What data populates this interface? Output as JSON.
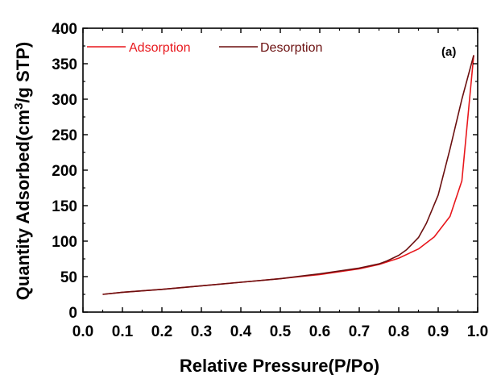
{
  "chart_data": {
    "type": "line",
    "xlabel": "Relative Pressure(P/Po)",
    "ylabel_parts": [
      "Quantity Adsorbed(cm",
      "3",
      "/g STP)"
    ],
    "annotation": "(a)",
    "xlim": [
      0.0,
      1.0
    ],
    "ylim": [
      0,
      400
    ],
    "xticks": [
      0.0,
      0.1,
      0.2,
      0.3,
      0.4,
      0.5,
      0.6,
      0.7,
      0.8,
      0.9,
      1.0
    ],
    "xtick_labels": [
      "0.0",
      "0.1",
      "0.2",
      "0.3",
      "0.4",
      "0.5",
      "0.6",
      "0.7",
      "0.8",
      "0.9",
      "1.0"
    ],
    "yticks": [
      0,
      50,
      100,
      150,
      200,
      250,
      300,
      350,
      400
    ],
    "ytick_labels": [
      "0",
      "50",
      "100",
      "150",
      "200",
      "250",
      "300",
      "350",
      "400"
    ],
    "grid": false,
    "legend_position": "top-left",
    "series": [
      {
        "name": "Adsorption",
        "color": "#e8171c",
        "x": [
          0.05,
          0.1,
          0.2,
          0.3,
          0.4,
          0.5,
          0.6,
          0.7,
          0.75,
          0.8,
          0.85,
          0.89,
          0.93,
          0.96,
          0.99
        ],
        "y": [
          25,
          28,
          32,
          37,
          42,
          47,
          53,
          61,
          67,
          76,
          89,
          106,
          135,
          185,
          362
        ]
      },
      {
        "name": "Desorption",
        "color": "#6b0f0f",
        "x": [
          0.99,
          0.96,
          0.93,
          0.9,
          0.87,
          0.85,
          0.82,
          0.8,
          0.77,
          0.75,
          0.7,
          0.6,
          0.5,
          0.4,
          0.3,
          0.2,
          0.1,
          0.05
        ],
        "y": [
          362,
          300,
          230,
          165,
          125,
          105,
          88,
          80,
          72,
          68,
          62,
          54,
          47,
          42,
          37,
          32,
          28,
          25
        ]
      }
    ]
  }
}
